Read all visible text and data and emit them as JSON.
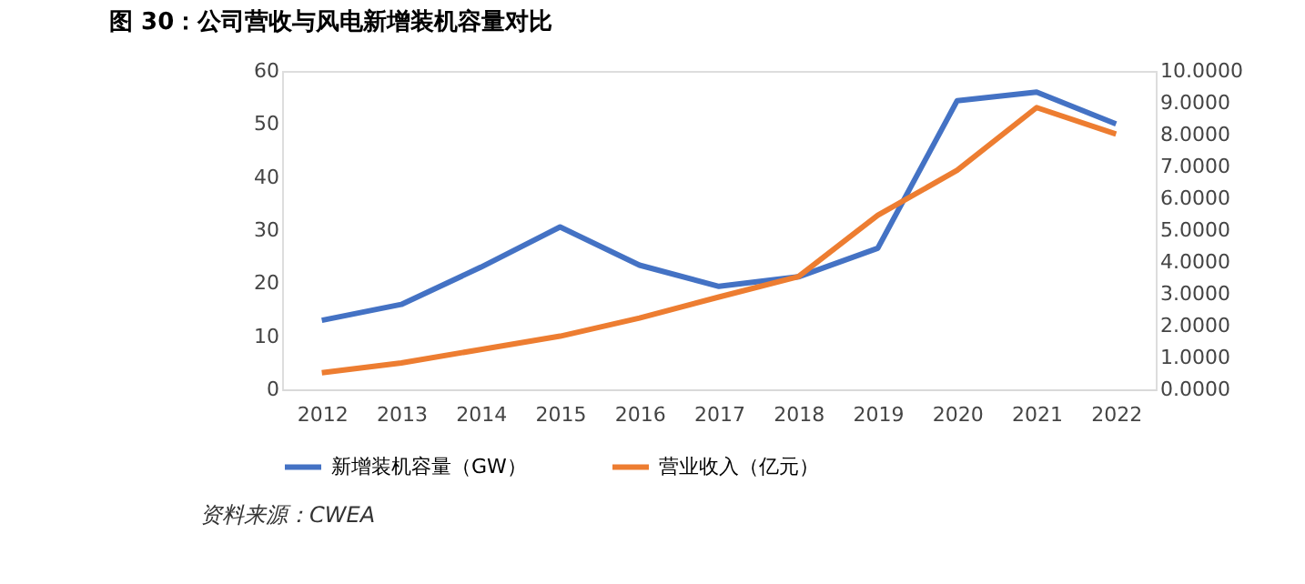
{
  "chart_data": {
    "type": "line",
    "title": "图 30：公司营收与风电新增装机容量对比",
    "categories": [
      "2012",
      "2013",
      "2014",
      "2015",
      "2016",
      "2017",
      "2018",
      "2019",
      "2020",
      "2021",
      "2022"
    ],
    "series": [
      {
        "name": "新增装机容量（GW）",
        "color": "#4472c4",
        "values": [
          13,
          16,
          23,
          30.6,
          23.4,
          19.4,
          21.2,
          26.6,
          54.4,
          56,
          50
        ]
      },
      {
        "name": "营业收入（亿元）",
        "color": "#ed7d31",
        "axis": "y2",
        "values": [
          0.52,
          0.83,
          1.25,
          1.67,
          2.24,
          2.9,
          3.54,
          5.47,
          6.88,
          8.85,
          8.02
        ]
      }
    ],
    "ylim": [
      0,
      60
    ],
    "yticks": [
      0,
      10,
      20,
      30,
      40,
      50,
      60
    ],
    "y2lim": [
      0,
      10
    ],
    "y2ticks": [
      {
        "value": 0,
        "label": "0.0000"
      },
      {
        "value": 1,
        "label": "1.0000"
      },
      {
        "value": 2,
        "label": "2.0000"
      },
      {
        "value": 3,
        "label": "3.0000"
      },
      {
        "value": 4,
        "label": "4.0000"
      },
      {
        "value": 5,
        "label": "5.0000"
      },
      {
        "value": 6,
        "label": "6.0000"
      },
      {
        "value": 7,
        "label": "7.0000"
      },
      {
        "value": 8,
        "label": "8.0000"
      },
      {
        "value": 9,
        "label": "9.0000"
      },
      {
        "value": 10,
        "label": "10.0000"
      }
    ],
    "grid": false,
    "legend": "bottom",
    "marker": "none",
    "line_style": "solid",
    "annotations": [
      "资料来源：CWEA"
    ]
  }
}
